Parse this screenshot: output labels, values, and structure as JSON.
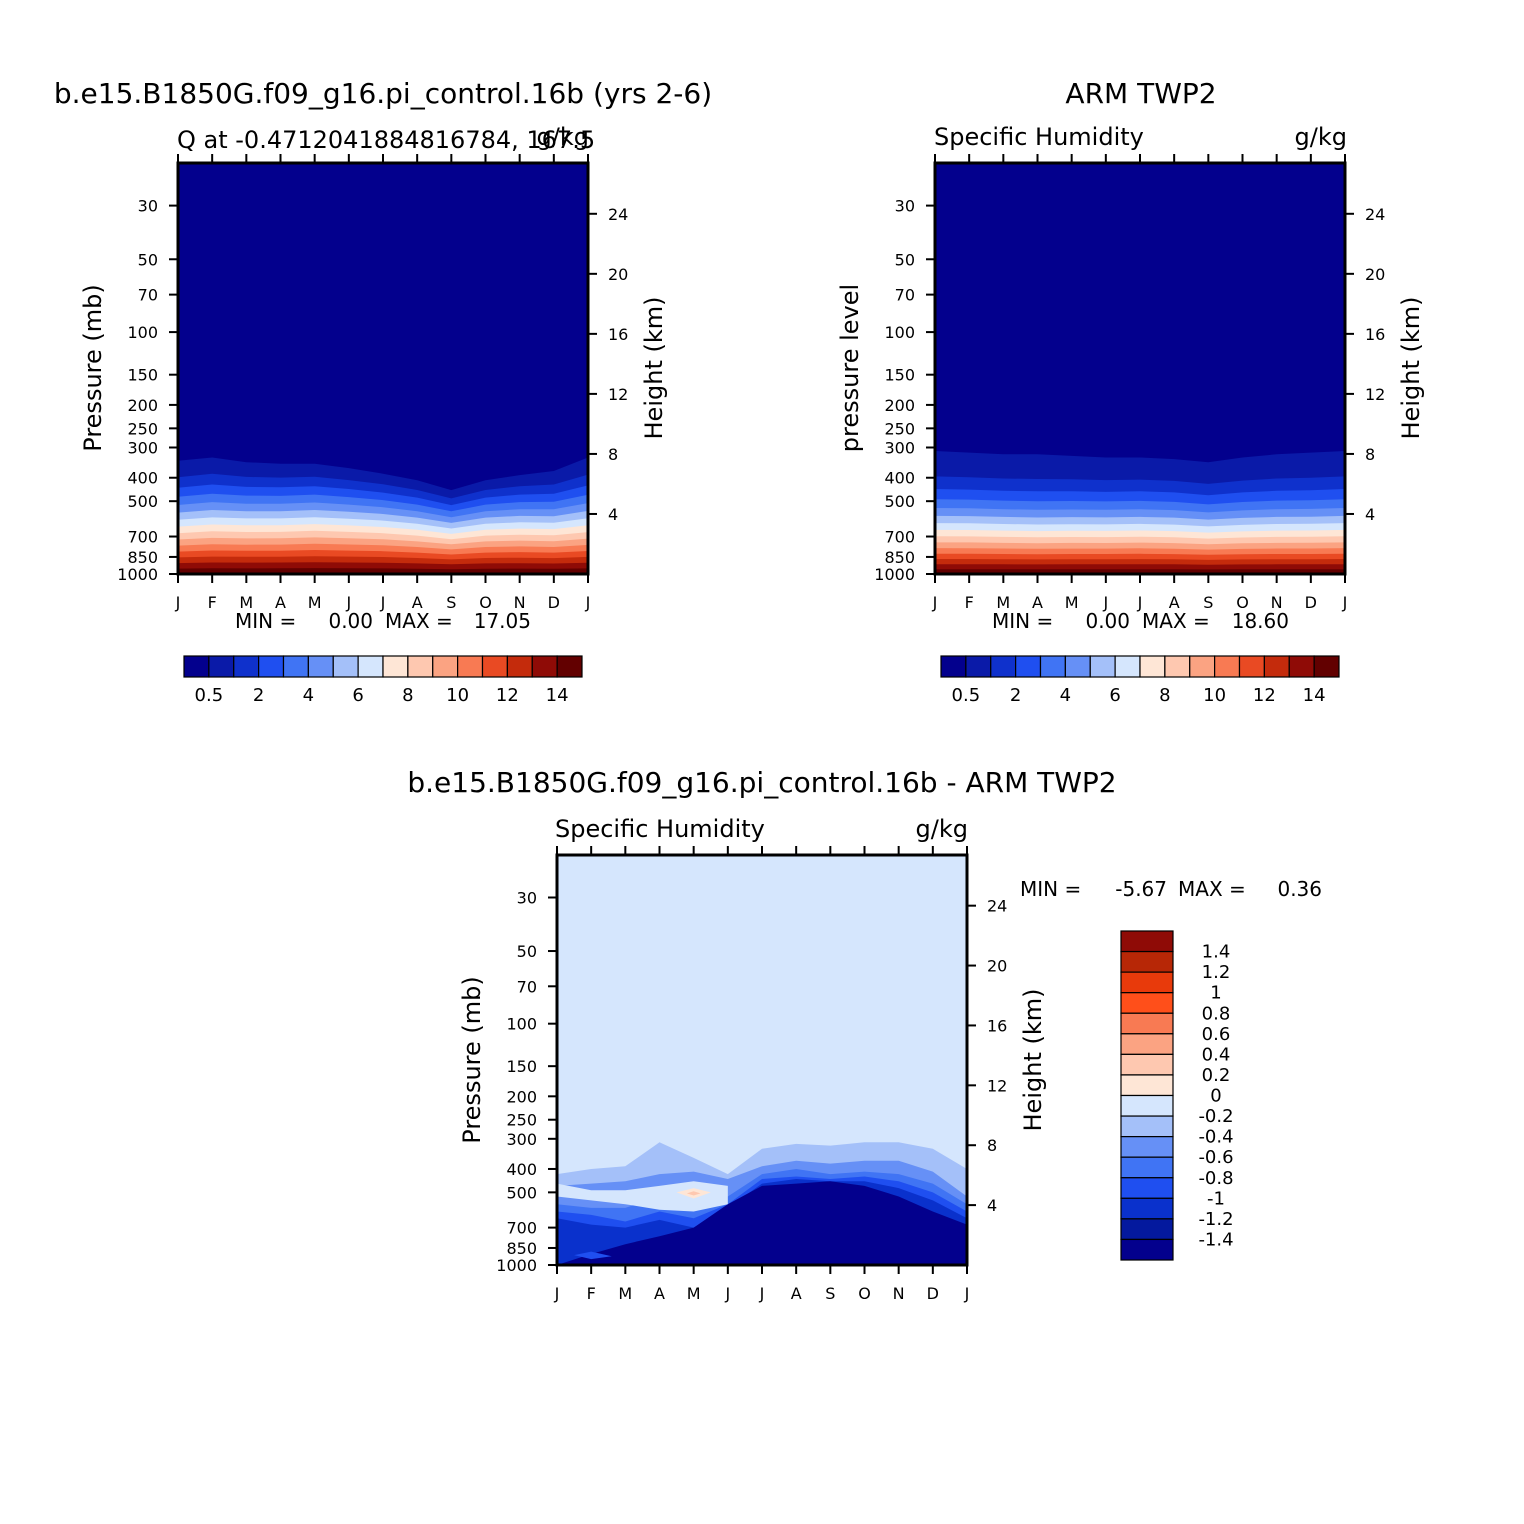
{
  "chart_data": [
    {
      "type": "heatmap",
      "title": "b.e15.B1850G.f09_g16.pi_control.16b (yrs 2-6)",
      "subtitle_left": "Q at -0.4712041884816784, 167.5",
      "subtitle_right": "g/kg",
      "ylabel": "Pressure (mb)",
      "ylabel_right": "Height (km)",
      "x_ticks": [
        "J",
        "F",
        "M",
        "A",
        "M",
        "J",
        "J",
        "A",
        "S",
        "O",
        "N",
        "D",
        "J"
      ],
      "y_ticks": [
        "30",
        "50",
        "70",
        "100",
        "150",
        "200",
        "250",
        "300",
        "400",
        "500",
        "700",
        "850",
        "1000"
      ],
      "height_ticks": [
        "24",
        "20",
        "16",
        "12",
        "8",
        "4"
      ],
      "stats": {
        "min_label": "MIN =",
        "min": "0.00",
        "max_label": "MAX =",
        "max": "17.05"
      },
      "colorbar_ticks": [
        "0.5",
        "2",
        "4",
        "6",
        "8",
        "10",
        "12",
        "14"
      ],
      "month_values_note": "",
      "moist_top_pressure_mb": [
        340,
        330,
        345,
        350,
        350,
        365,
        385,
        410,
        450,
        410,
        390,
        375,
        330
      ],
      "surface_humidity_gkg": [
        17.0,
        16.8,
        16.5,
        16.3,
        16.0,
        15.8,
        15.5,
        15.4,
        15.2,
        15.4,
        15.8,
        16.5,
        17.0
      ]
    },
    {
      "type": "heatmap",
      "title": "ARM TWP2",
      "subtitle_left": "Specific Humidity",
      "subtitle_right": "g/kg",
      "ylabel": "pressure level",
      "ylabel_right": "Height (km)",
      "x_ticks": [
        "J",
        "F",
        "M",
        "A",
        "M",
        "J",
        "J",
        "A",
        "S",
        "O",
        "N",
        "D",
        "J"
      ],
      "y_ticks": [
        "30",
        "50",
        "70",
        "100",
        "150",
        "200",
        "250",
        "300",
        "400",
        "500",
        "700",
        "850",
        "1000"
      ],
      "height_ticks": [
        "24",
        "20",
        "16",
        "12",
        "8",
        "4"
      ],
      "stats": {
        "min_label": "MIN =",
        "min": "0.00",
        "max_label": "MAX =",
        "max": "18.60"
      },
      "colorbar_ticks": [
        "0.5",
        "2",
        "4",
        "6",
        "8",
        "10",
        "12",
        "14"
      ],
      "moist_top_pressure_mb": [
        310,
        315,
        320,
        320,
        325,
        330,
        330,
        335,
        345,
        330,
        320,
        315,
        310
      ],
      "surface_humidity_gkg": [
        18.6,
        18.5,
        18.5,
        18.6,
        18.4,
        18.3,
        18.2,
        18.2,
        18.3,
        18.4,
        18.5,
        18.6,
        18.6
      ]
    },
    {
      "type": "heatmap",
      "title": "b.e15.B1850G.f09_g16.pi_control.16b - ARM TWP2",
      "subtitle_left": "Specific Humidity",
      "subtitle_right": "g/kg",
      "ylabel": "Pressure (mb)",
      "ylabel_right": "Height (km)",
      "x_ticks": [
        "J",
        "F",
        "M",
        "A",
        "M",
        "J",
        "J",
        "A",
        "S",
        "O",
        "N",
        "D",
        "J"
      ],
      "y_ticks": [
        "30",
        "50",
        "70",
        "100",
        "150",
        "200",
        "250",
        "300",
        "400",
        "500",
        "700",
        "850",
        "1000"
      ],
      "height_ticks": [
        "24",
        "20",
        "16",
        "12",
        "8",
        "4"
      ],
      "stats": {
        "min_label": "MIN =",
        "min": "-5.67",
        "max_label": "MAX =",
        "max": "0.36"
      },
      "colorbar_ticks": [
        "1.4",
        "1.2",
        "1",
        "0.8",
        "0.6",
        "0.4",
        "0.2",
        "0",
        "-0.2",
        "-0.4",
        "-0.6",
        "-0.8",
        "-1",
        "-1.2",
        "-1.4"
      ],
      "dry_top_pressure_mb": [
        1000,
        900,
        820,
        760,
        700,
        560,
        470,
        460,
        450,
        470,
        520,
        600,
        680
      ]
    }
  ],
  "colors": {
    "humidity_scale": [
      "#03008d",
      "#0a1aa8",
      "#0f31cc",
      "#1f4ff0",
      "#4074f4",
      "#6690f6",
      "#a4c0f9",
      "#d5e6fd",
      "#fee6d6",
      "#fec8b0",
      "#fba382",
      "#f87a53",
      "#e94a23",
      "#c42b0c",
      "#8f0b06",
      "#620000"
    ],
    "diff_scale": [
      "#03008d",
      "#04199e",
      "#0a31cc",
      "#1f4ff0",
      "#4074f4",
      "#6690f6",
      "#a4c0f9",
      "#d5e6fd",
      "#fee6d6",
      "#fec8b0",
      "#fba382",
      "#f87a53",
      "#ff4f1a",
      "#e83a0b",
      "#b72706",
      "#8f0b06"
    ]
  }
}
